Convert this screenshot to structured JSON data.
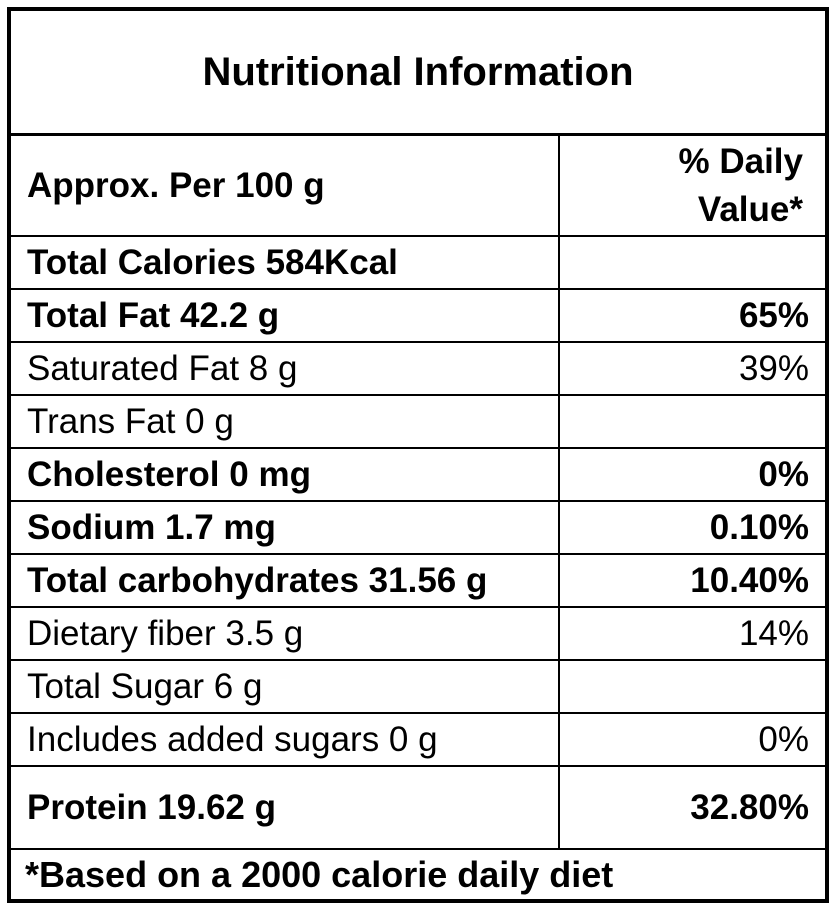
{
  "title": "Nutritional Information",
  "header": {
    "label": "Approx. Per 100 g",
    "value": "% Daily Value*"
  },
  "rows": [
    {
      "label": "Total Calories 584Kcal",
      "value": "",
      "bold": true,
      "tall": false
    },
    {
      "label": "Total Fat 42.2 g",
      "value": "65%",
      "bold": true,
      "tall": false
    },
    {
      "label": "Saturated Fat 8 g",
      "value": "39%",
      "bold": false,
      "tall": false
    },
    {
      "label": "Trans Fat 0 g",
      "value": "",
      "bold": false,
      "tall": false
    },
    {
      "label": "Cholesterol 0 mg",
      "value": "0%",
      "bold": true,
      "tall": false
    },
    {
      "label": "Sodium 1.7 mg",
      "value": "0.10%",
      "bold": true,
      "tall": false
    },
    {
      "label": "Total carbohydrates 31.56 g",
      "value": "10.40%",
      "bold": true,
      "tall": false
    },
    {
      "label": "Dietary fiber 3.5 g",
      "value": "14%",
      "bold": false,
      "tall": false
    },
    {
      "label": "Total Sugar 6 g",
      "value": "",
      "bold": false,
      "tall": false
    },
    {
      "label": "Includes added sugars 0 g",
      "value": "0%",
      "bold": false,
      "tall": false
    },
    {
      "label": "Protein 19.62 g",
      "value": "32.80%",
      "bold": true,
      "tall": true
    }
  ],
  "footer": "*Based on a 2000 calorie daily diet",
  "colors": {
    "border": "#000000",
    "background": "#ffffff",
    "text": "#000000"
  }
}
